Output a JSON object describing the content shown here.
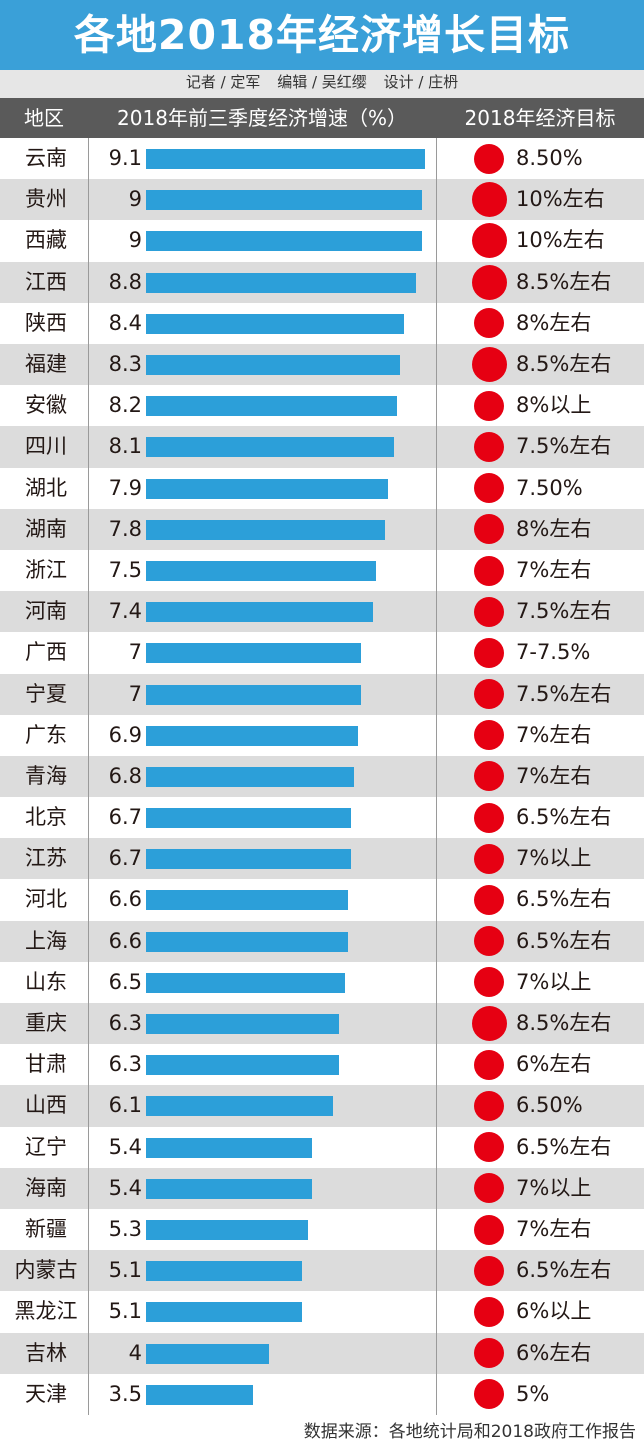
{
  "title": "各地2018年经济增长目标",
  "credits": [
    "记者 / 定军",
    "编辑 / 吴红缨",
    "设计 / 庄枬"
  ],
  "headers": {
    "region": "地区",
    "growth": "2018年前三季度经济增速（%）",
    "target": "2018年经济目标"
  },
  "footer": "数据来源：各地统计局和2018政府工作报告",
  "colors": {
    "header_bg": "#3aa0d8",
    "bar": "#2c9fd9",
    "dot": "#e60012",
    "row_alt": "#dcdcdc"
  },
  "chart_data": {
    "type": "table",
    "title": "各地2018年经济增长目标",
    "bar_max": 9.1,
    "rows": [
      {
        "region": "云南",
        "growth": 9.1,
        "growth_label": "9.1",
        "target": "8.50%"
      },
      {
        "region": "贵州",
        "growth": 9,
        "growth_label": "9",
        "target": "10%左右"
      },
      {
        "region": "西藏",
        "growth": 9,
        "growth_label": "9",
        "target": "10%左右"
      },
      {
        "region": "江西",
        "growth": 8.8,
        "growth_label": "8.8",
        "target": "8.5%左右"
      },
      {
        "region": "陕西",
        "growth": 8.4,
        "growth_label": "8.4",
        "target": "8%左右"
      },
      {
        "region": "福建",
        "growth": 8.3,
        "growth_label": "8.3",
        "target": "8.5%左右"
      },
      {
        "region": "安徽",
        "growth": 8.2,
        "growth_label": "8.2",
        "target": "8%以上"
      },
      {
        "region": "四川",
        "growth": 8.1,
        "growth_label": "8.1",
        "target": "7.5%左右"
      },
      {
        "region": "湖北",
        "growth": 7.9,
        "growth_label": "7.9",
        "target": "7.50%"
      },
      {
        "region": "湖南",
        "growth": 7.8,
        "growth_label": "7.8",
        "target": "8%左右"
      },
      {
        "region": "浙江",
        "growth": 7.5,
        "growth_label": "7.5",
        "target": "7%左右"
      },
      {
        "region": "河南",
        "growth": 7.4,
        "growth_label": "7.4",
        "target": "7.5%左右"
      },
      {
        "region": "广西",
        "growth": 7,
        "growth_label": "7",
        "target": "7-7.5%"
      },
      {
        "region": "宁夏",
        "growth": 7,
        "growth_label": "7",
        "target": "7.5%左右"
      },
      {
        "region": "广东",
        "growth": 6.9,
        "growth_label": "6.9",
        "target": "7%左右"
      },
      {
        "region": "青海",
        "growth": 6.8,
        "growth_label": "6.8",
        "target": "7%左右"
      },
      {
        "region": "北京",
        "growth": 6.7,
        "growth_label": "6.7",
        "target": "6.5%左右"
      },
      {
        "region": "江苏",
        "growth": 6.7,
        "growth_label": "6.7",
        "target": "7%以上"
      },
      {
        "region": "河北",
        "growth": 6.6,
        "growth_label": "6.6",
        "target": "6.5%左右"
      },
      {
        "region": "上海",
        "growth": 6.6,
        "growth_label": "6.6",
        "target": "6.5%左右"
      },
      {
        "region": "山东",
        "growth": 6.5,
        "growth_label": "6.5",
        "target": "7%以上"
      },
      {
        "region": "重庆",
        "growth": 6.3,
        "growth_label": "6.3",
        "target": "8.5%左右"
      },
      {
        "region": "甘肃",
        "growth": 6.3,
        "growth_label": "6.3",
        "target": "6%左右"
      },
      {
        "region": "山西",
        "growth": 6.1,
        "growth_label": "6.1",
        "target": "6.50%"
      },
      {
        "region": "辽宁",
        "growth": 5.4,
        "growth_label": "5.4",
        "target": "6.5%左右"
      },
      {
        "region": "海南",
        "growth": 5.4,
        "growth_label": "5.4",
        "target": "7%以上"
      },
      {
        "region": "新疆",
        "growth": 5.3,
        "growth_label": "5.3",
        "target": "7%左右"
      },
      {
        "region": "内蒙古",
        "growth": 5.1,
        "growth_label": "5.1",
        "target": "6.5%左右"
      },
      {
        "region": "黑龙江",
        "growth": 5.1,
        "growth_label": "5.1",
        "target": "6%以上"
      },
      {
        "region": "吉林",
        "growth": 4,
        "growth_label": "4",
        "target": "6%左右"
      },
      {
        "region": "天津",
        "growth": 3.5,
        "growth_label": "3.5",
        "target": "5%"
      }
    ]
  }
}
